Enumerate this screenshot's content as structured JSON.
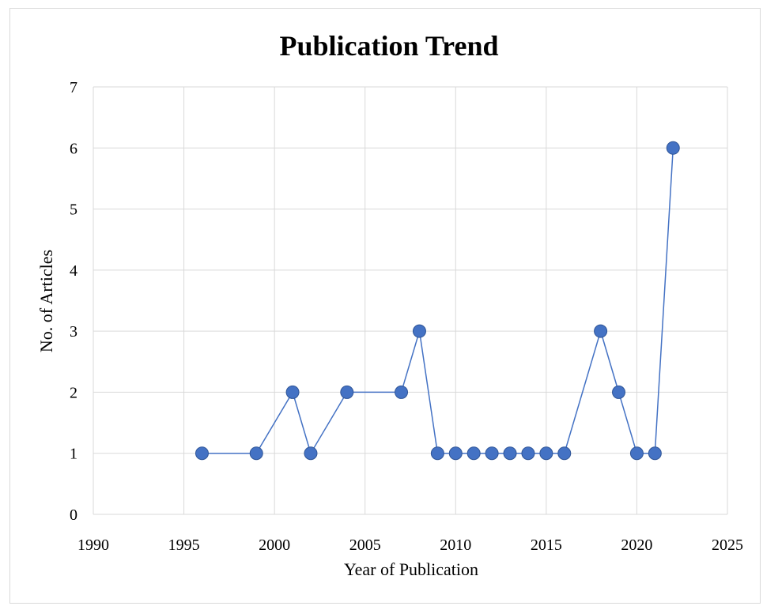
{
  "chart_data": {
    "type": "scatter",
    "title": "Publication Trend",
    "xlabel": "Year of Publication",
    "ylabel": "No. of Articles",
    "xlim": [
      1990,
      2025
    ],
    "ylim": [
      0,
      7
    ],
    "xticks": [
      1990,
      1995,
      2000,
      2005,
      2010,
      2015,
      2020,
      2025
    ],
    "yticks": [
      0,
      1,
      2,
      3,
      4,
      5,
      6,
      7
    ],
    "grid": true,
    "series": [
      {
        "color": "#4472c4",
        "x": [
          1996,
          1999,
          2001,
          2002,
          2004,
          2007,
          2008,
          2009,
          2010,
          2011,
          2012,
          2013,
          2014,
          2015,
          2016,
          2018,
          2019,
          2020,
          2021,
          2022
        ],
        "y": [
          1,
          1,
          2,
          1,
          2,
          2,
          3,
          1,
          1,
          1,
          1,
          1,
          1,
          1,
          1,
          3,
          2,
          1,
          1,
          6
        ]
      }
    ]
  }
}
